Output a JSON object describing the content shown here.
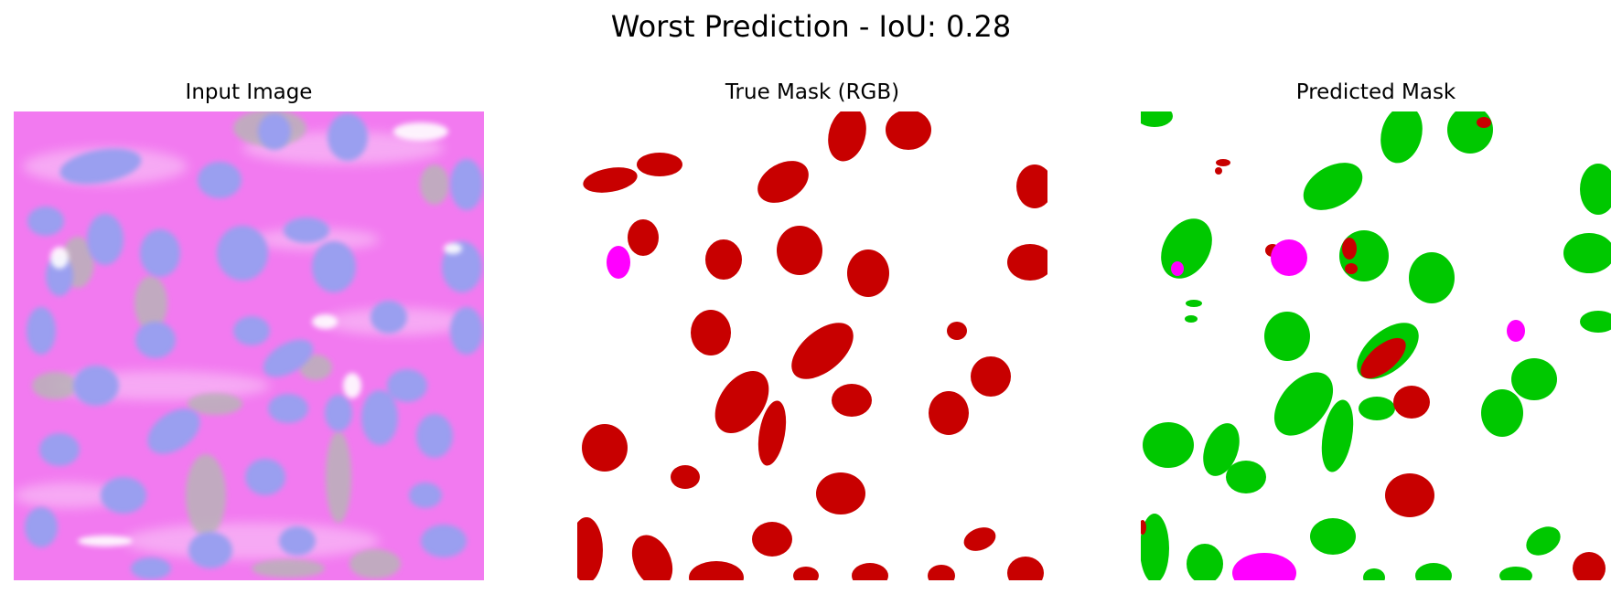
{
  "figure": {
    "suptitle": "Worst Prediction - IoU: 0.28",
    "panels": [
      {
        "title": "Input Image",
        "content": "histology-image"
      },
      {
        "title": "True Mask (RGB)",
        "content": "segmentation-mask"
      },
      {
        "title": "Predicted Mask",
        "content": "segmentation-mask"
      }
    ]
  },
  "colors": {
    "background": "#ffffff",
    "mask_red": "#c80000",
    "mask_green": "#00c800",
    "mask_magenta": "#ff00ff",
    "tissue_pink": "#f27af0",
    "nucleus_blue": "#9a9ff0",
    "stroma_gray": "#b9b3b8"
  }
}
